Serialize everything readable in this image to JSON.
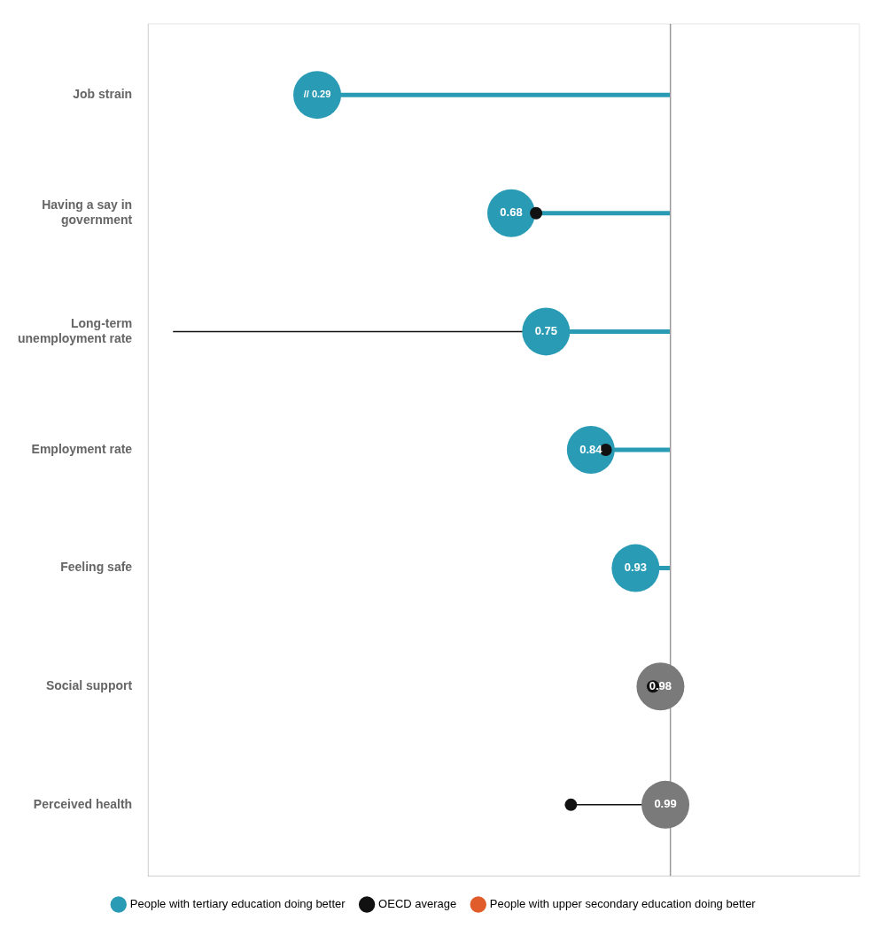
{
  "chart_data": {
    "type": "dot",
    "categories": [
      "Job strain",
      "Having a say in\ngovernment",
      "Long-term\nunemployment rate",
      "Employment rate",
      "Feeling safe",
      "Social support",
      "Perceived health"
    ],
    "series": [
      {
        "name": "People with tertiary education doing better",
        "color": "#2A9BB5",
        "colors": [
          "#2A9BB5",
          "#2A9BB5",
          "#2A9BB5",
          "#2A9BB5",
          "#2A9BB5",
          "#7a7a7a",
          "#7a7a7a"
        ],
        "values": [
          0.29,
          0.68,
          0.75,
          0.84,
          0.93,
          0.98,
          0.99
        ],
        "value_labels": [
          "// 0.29",
          "0.68",
          "0.75",
          "0.84",
          "0.93",
          "0.98",
          "0.99"
        ]
      },
      {
        "name": "OECD average",
        "color": "#111111",
        "values": [
          null,
          0.73,
          null,
          0.87,
          null,
          0.965,
          0.8
        ]
      },
      {
        "name": "People with upper secondary education doing better",
        "color": "#E05C2A",
        "values": [
          null,
          null,
          null,
          null,
          null,
          null,
          null
        ]
      }
    ],
    "lines": [
      {
        "category": "Job strain",
        "from": 0.29,
        "to": 1.0,
        "color": "#2A9BB5"
      },
      {
        "category": "Having a say in\ngovernment",
        "from": 0.68,
        "to": 1.0,
        "color": "#2A9BB5"
      },
      {
        "category": "Long-term\nunemployment rate",
        "from": 0.0,
        "to": 0.75,
        "color": "#111111"
      },
      {
        "category": "Long-term\nunemployment rate",
        "from": 0.75,
        "to": 1.0,
        "color": "#2A9BB5"
      },
      {
        "category": "Employment rate",
        "from": 0.84,
        "to": 1.0,
        "color": "#2A9BB5"
      },
      {
        "category": "Feeling safe",
        "from": 0.93,
        "to": 1.0,
        "color": "#2A9BB5"
      },
      {
        "category": "Social support",
        "from": 0.965,
        "to": 0.98,
        "color": "#111111"
      },
      {
        "category": "Perceived health",
        "from": 0.8,
        "to": 0.99,
        "color": "#111111"
      }
    ],
    "reference_line": {
      "value": 1.0,
      "color": "#999999"
    },
    "xlim": [
      -0.05,
      1.38
    ],
    "tick_labels": "y",
    "grid": false,
    "legend": "bottom",
    "data_labels": true
  }
}
